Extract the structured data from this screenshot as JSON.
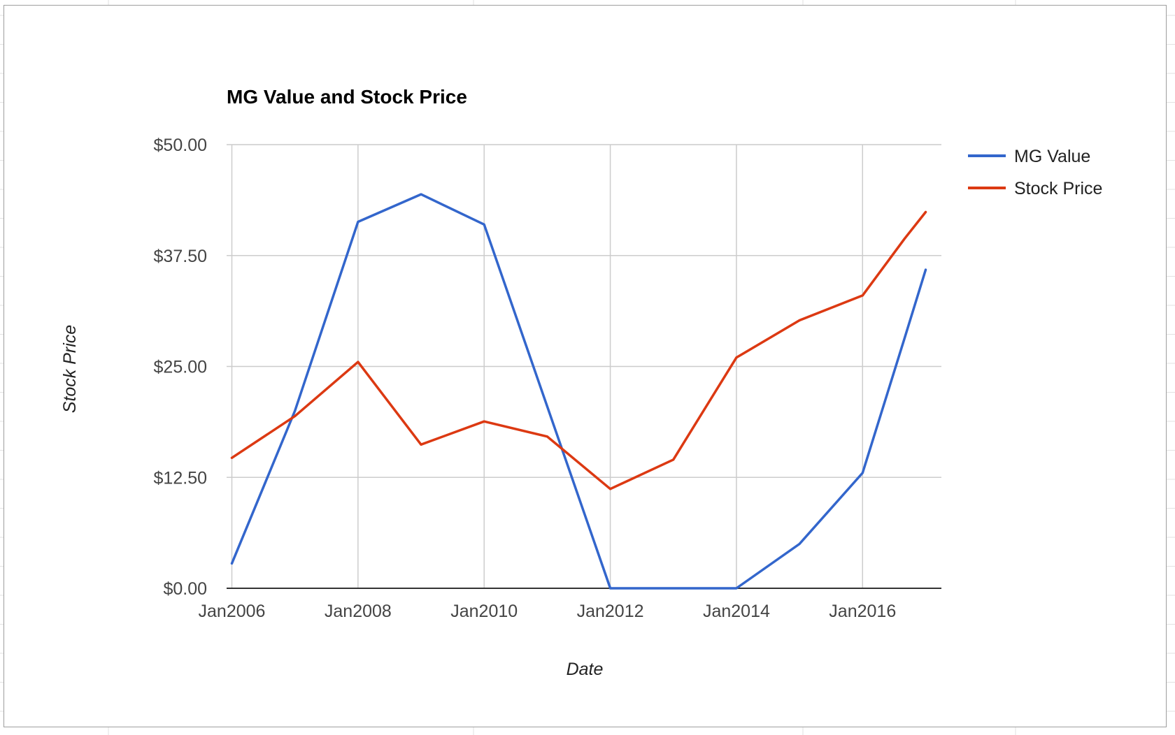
{
  "chart_data": {
    "type": "line",
    "title": "MG Value and Stock Price",
    "xlabel": "Date",
    "ylabel": "Stock Price",
    "x": [
      "2006-01",
      "2007-01",
      "2008-01",
      "2009-01",
      "2010-01",
      "2011-01",
      "2012-01",
      "2013-01",
      "2014-01",
      "2015-01",
      "2016-01",
      "2016-09",
      "2017-01"
    ],
    "x_ticks": [
      "Jan2006",
      "Jan2008",
      "Jan2010",
      "Jan2012",
      "Jan2014",
      "Jan2016"
    ],
    "x_range": [
      "2005-12",
      "2017-04"
    ],
    "y_ticks": [
      "$0.00",
      "$12.50",
      "$25.00",
      "$37.50",
      "$50.00"
    ],
    "ylim": [
      0,
      50
    ],
    "grid": true,
    "legend_position": "right",
    "series": [
      {
        "name": "MG Value",
        "color": "#3366cc",
        "values": [
          2.8,
          20.0,
          41.3,
          44.4,
          41.0,
          20.5,
          0.0,
          0.0,
          0.0,
          5.0,
          13.0,
          28.2,
          35.9
        ]
      },
      {
        "name": "Stock Price",
        "color": "#dc3912",
        "values": [
          14.7,
          19.4,
          25.5,
          16.2,
          18.8,
          17.1,
          11.2,
          14.5,
          26.0,
          30.2,
          33.0,
          39.4,
          42.4
        ]
      }
    ]
  }
}
